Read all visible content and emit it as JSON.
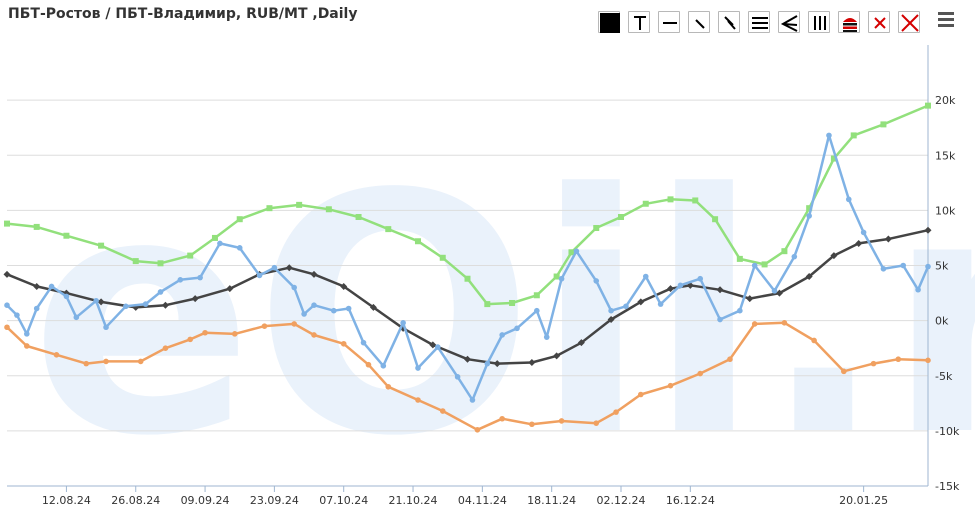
{
  "header": {
    "title": "ПБТ-Ростов / ПБТ-Владимир, RUB/MT ,Daily"
  },
  "watermark": {
    "text": "eOil.ru"
  },
  "toolbar": {
    "buttons": [
      {
        "name": "black-square-icon"
      },
      {
        "name": "text-tool-icon"
      },
      {
        "name": "horizontal-line-icon"
      },
      {
        "name": "trend-line-icon"
      },
      {
        "name": "parallel-lines-icon"
      },
      {
        "name": "channel-icon"
      },
      {
        "name": "fan-icon"
      },
      {
        "name": "vertical-lines-icon"
      },
      {
        "name": "layers-icon"
      },
      {
        "name": "delete-selected-icon"
      },
      {
        "name": "delete-all-icon"
      }
    ],
    "accent_red": "#d40000"
  },
  "chart_data": {
    "type": "line",
    "title": "ПБТ-Ростов / ПБТ-Владимир, RUB/MT ,Daily",
    "xlabel": "",
    "ylabel": "",
    "ylim": [
      -15000,
      25000
    ],
    "yticks": [
      -15000,
      -10000,
      -5000,
      0,
      5000,
      10000,
      15000,
      20000
    ],
    "ytick_labels": [
      "-15k",
      "-10k",
      "-5k",
      "0k",
      "5k",
      "10k",
      "15k",
      "20k"
    ],
    "x_start": "2024-07-31",
    "x_end": "2025-02-02",
    "xticks": [
      "2024-08-12",
      "2024-08-26",
      "2024-09-09",
      "2024-09-23",
      "2024-10-07",
      "2024-10-21",
      "2024-11-04",
      "2024-11-18",
      "2024-12-02",
      "2024-12-16",
      "2025-01-20"
    ],
    "xtick_labels": [
      "12.08.24",
      "26.08.24",
      "09.09.24",
      "23.09.24",
      "07.10.24",
      "21.10.24",
      "04.11.24",
      "18.11.24",
      "02.12.24",
      "16.12.24",
      "20.01.25"
    ],
    "grid": true,
    "series": [
      {
        "color": "#92e07c",
        "marker": "square",
        "points": [
          [
            "2024-07-31",
            8800
          ],
          [
            "2024-08-06",
            8500
          ],
          [
            "2024-08-12",
            7700
          ],
          [
            "2024-08-19",
            6800
          ],
          [
            "2024-08-26",
            5400
          ],
          [
            "2024-08-31",
            5200
          ],
          [
            "2024-09-06",
            5900
          ],
          [
            "2024-09-11",
            7500
          ],
          [
            "2024-09-16",
            9200
          ],
          [
            "2024-09-22",
            10200
          ],
          [
            "2024-09-28",
            10500
          ],
          [
            "2024-10-04",
            10100
          ],
          [
            "2024-10-10",
            9400
          ],
          [
            "2024-10-16",
            8300
          ],
          [
            "2024-10-22",
            7200
          ],
          [
            "2024-10-27",
            5700
          ],
          [
            "2024-11-01",
            3800
          ],
          [
            "2024-11-05",
            1500
          ],
          [
            "2024-11-10",
            1600
          ],
          [
            "2024-11-15",
            2300
          ],
          [
            "2024-11-19",
            4000
          ],
          [
            "2024-11-22",
            6200
          ],
          [
            "2024-11-27",
            8400
          ],
          [
            "2024-12-02",
            9400
          ],
          [
            "2024-12-07",
            10600
          ],
          [
            "2024-12-12",
            11000
          ],
          [
            "2024-12-17",
            10900
          ],
          [
            "2024-12-21",
            9200
          ],
          [
            "2024-12-26",
            5600
          ],
          [
            "2024-12-31",
            5100
          ],
          [
            "2025-01-04",
            6300
          ],
          [
            "2025-01-09",
            10200
          ],
          [
            "2025-01-14",
            14700
          ],
          [
            "2025-01-18",
            16800
          ],
          [
            "2025-01-24",
            17800
          ],
          [
            "2025-02-02",
            19500
          ]
        ]
      },
      {
        "color": "#444444",
        "marker": "diamond",
        "points": [
          [
            "2024-07-31",
            4200
          ],
          [
            "2024-08-06",
            3100
          ],
          [
            "2024-08-12",
            2500
          ],
          [
            "2024-08-19",
            1700
          ],
          [
            "2024-08-26",
            1200
          ],
          [
            "2024-09-01",
            1400
          ],
          [
            "2024-09-07",
            2000
          ],
          [
            "2024-09-14",
            2900
          ],
          [
            "2024-09-20",
            4200
          ],
          [
            "2024-09-26",
            4800
          ],
          [
            "2024-10-01",
            4200
          ],
          [
            "2024-10-07",
            3100
          ],
          [
            "2024-10-13",
            1200
          ],
          [
            "2024-10-19",
            -700
          ],
          [
            "2024-10-25",
            -2200
          ],
          [
            "2024-11-01",
            -3500
          ],
          [
            "2024-11-07",
            -3900
          ],
          [
            "2024-11-14",
            -3800
          ],
          [
            "2024-11-19",
            -3200
          ],
          [
            "2024-11-24",
            -2000
          ],
          [
            "2024-11-30",
            100
          ],
          [
            "2024-12-06",
            1700
          ],
          [
            "2024-12-12",
            2900
          ],
          [
            "2024-12-16",
            3200
          ],
          [
            "2024-12-22",
            2800
          ],
          [
            "2024-12-28",
            2000
          ],
          [
            "2025-01-03",
            2500
          ],
          [
            "2025-01-09",
            4000
          ],
          [
            "2025-01-14",
            5900
          ],
          [
            "2025-01-19",
            7000
          ],
          [
            "2025-01-25",
            7400
          ],
          [
            "2025-02-02",
            8200
          ]
        ]
      },
      {
        "color": "#f0a060",
        "marker": "circle",
        "points": [
          [
            "2024-07-31",
            -600
          ],
          [
            "2024-08-04",
            -2300
          ],
          [
            "2024-08-10",
            -3100
          ],
          [
            "2024-08-16",
            -3900
          ],
          [
            "2024-08-20",
            -3700
          ],
          [
            "2024-08-27",
            -3700
          ],
          [
            "2024-09-01",
            -2500
          ],
          [
            "2024-09-06",
            -1700
          ],
          [
            "2024-09-09",
            -1100
          ],
          [
            "2024-09-15",
            -1200
          ],
          [
            "2024-09-21",
            -500
          ],
          [
            "2024-09-27",
            -300
          ],
          [
            "2024-10-01",
            -1300
          ],
          [
            "2024-10-07",
            -2100
          ],
          [
            "2024-10-12",
            -4000
          ],
          [
            "2024-10-16",
            -6000
          ],
          [
            "2024-10-22",
            -7200
          ],
          [
            "2024-10-27",
            -8200
          ],
          [
            "2024-11-03",
            -9900
          ],
          [
            "2024-11-08",
            -8900
          ],
          [
            "2024-11-14",
            -9400
          ],
          [
            "2024-11-20",
            -9100
          ],
          [
            "2024-11-27",
            -9300
          ],
          [
            "2024-12-01",
            -8300
          ],
          [
            "2024-12-06",
            -6700
          ],
          [
            "2024-12-12",
            -5900
          ],
          [
            "2024-12-18",
            -4800
          ],
          [
            "2024-12-24",
            -3500
          ],
          [
            "2024-12-29",
            -300
          ],
          [
            "2025-01-04",
            -200
          ],
          [
            "2025-01-10",
            -1800
          ],
          [
            "2025-01-16",
            -4600
          ],
          [
            "2025-01-22",
            -3900
          ],
          [
            "2025-01-27",
            -3500
          ],
          [
            "2025-02-02",
            -3600
          ]
        ]
      },
      {
        "color": "#7fb2e5",
        "marker": "circle",
        "points": [
          [
            "2024-07-31",
            1400
          ],
          [
            "2024-08-02",
            500
          ],
          [
            "2024-08-04",
            -1200
          ],
          [
            "2024-08-06",
            1100
          ],
          [
            "2024-08-09",
            3100
          ],
          [
            "2024-08-12",
            2200
          ],
          [
            "2024-08-14",
            300
          ],
          [
            "2024-08-18",
            1800
          ],
          [
            "2024-08-20",
            -600
          ],
          [
            "2024-08-24",
            1300
          ],
          [
            "2024-08-28",
            1500
          ],
          [
            "2024-08-31",
            2600
          ],
          [
            "2024-09-04",
            3700
          ],
          [
            "2024-09-08",
            3900
          ],
          [
            "2024-09-12",
            7000
          ],
          [
            "2024-09-16",
            6600
          ],
          [
            "2024-09-20",
            4100
          ],
          [
            "2024-09-23",
            4800
          ],
          [
            "2024-09-27",
            3000
          ],
          [
            "2024-09-29",
            600
          ],
          [
            "2024-10-01",
            1400
          ],
          [
            "2024-10-05",
            900
          ],
          [
            "2024-10-08",
            1100
          ],
          [
            "2024-10-11",
            -2000
          ],
          [
            "2024-10-15",
            -4100
          ],
          [
            "2024-10-19",
            -200
          ],
          [
            "2024-10-22",
            -4300
          ],
          [
            "2024-10-26",
            -2400
          ],
          [
            "2024-10-30",
            -5100
          ],
          [
            "2024-11-02",
            -7200
          ],
          [
            "2024-11-05",
            -3900
          ],
          [
            "2024-11-08",
            -1300
          ],
          [
            "2024-11-11",
            -700
          ],
          [
            "2024-11-15",
            900
          ],
          [
            "2024-11-17",
            -1500
          ],
          [
            "2024-11-20",
            3800
          ],
          [
            "2024-11-23",
            6300
          ],
          [
            "2024-11-27",
            3600
          ],
          [
            "2024-11-30",
            900
          ],
          [
            "2024-12-03",
            1300
          ],
          [
            "2024-12-07",
            4000
          ],
          [
            "2024-12-10",
            1500
          ],
          [
            "2024-12-14",
            3200
          ],
          [
            "2024-12-18",
            3800
          ],
          [
            "2024-12-22",
            100
          ],
          [
            "2024-12-26",
            900
          ],
          [
            "2024-12-29",
            5000
          ],
          [
            "2025-01-02",
            2700
          ],
          [
            "2025-01-06",
            5800
          ],
          [
            "2025-01-09",
            9500
          ],
          [
            "2025-01-13",
            16800
          ],
          [
            "2025-01-17",
            11000
          ],
          [
            "2025-01-20",
            8000
          ],
          [
            "2025-01-24",
            4700
          ],
          [
            "2025-01-28",
            5000
          ],
          [
            "2025-01-31",
            2800
          ],
          [
            "2025-02-02",
            4900
          ]
        ]
      }
    ]
  }
}
